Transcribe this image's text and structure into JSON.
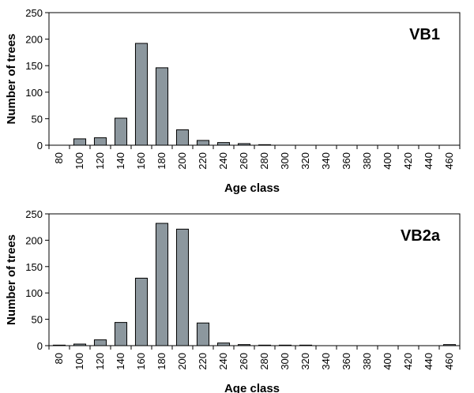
{
  "chart_data": [
    {
      "type": "bar",
      "title": "VB1",
      "xlabel": "Age class",
      "ylabel": "Number of trees",
      "ylim": [
        0,
        250
      ],
      "yticks": [
        0,
        50,
        100,
        150,
        200,
        250
      ],
      "categories": [
        "80",
        "100",
        "120",
        "140",
        "160",
        "180",
        "200",
        "220",
        "240",
        "260",
        "280",
        "300",
        "320",
        "340",
        "360",
        "380",
        "400",
        "420",
        "440",
        "460"
      ],
      "values": [
        0,
        12,
        14,
        51,
        192,
        146,
        29,
        9,
        5,
        3,
        1,
        0,
        0,
        0,
        0,
        0,
        0,
        0,
        0,
        0
      ],
      "grid": false,
      "legend": "none"
    },
    {
      "type": "bar",
      "title": "VB2a",
      "xlabel": "Age class",
      "ylabel": "Number of trees",
      "ylim": [
        0,
        250
      ],
      "yticks": [
        0,
        50,
        100,
        150,
        200,
        250
      ],
      "categories": [
        "80",
        "100",
        "120",
        "140",
        "160",
        "180",
        "200",
        "220",
        "240",
        "260",
        "280",
        "300",
        "320",
        "340",
        "360",
        "380",
        "400",
        "420",
        "440",
        "460"
      ],
      "values": [
        1,
        3,
        11,
        44,
        128,
        232,
        221,
        43,
        5,
        2,
        1,
        1,
        1,
        0,
        0,
        0,
        0,
        0,
        0,
        2
      ],
      "grid": false,
      "legend": "none"
    }
  ]
}
